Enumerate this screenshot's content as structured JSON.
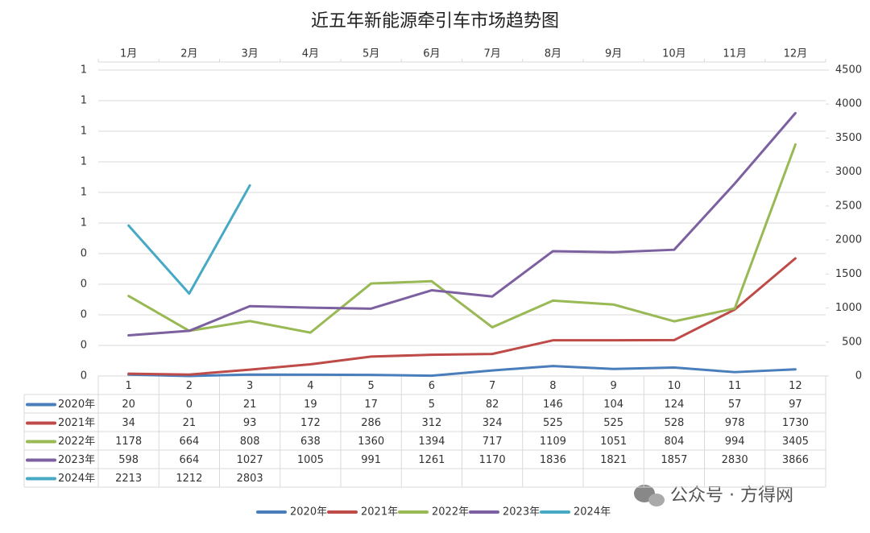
{
  "chart_data": {
    "type": "line",
    "title": "近五年新能源牵引车市场趋势图",
    "x2_categories": [
      "1月",
      "2月",
      "3月",
      "4月",
      "5月",
      "6月",
      "7月",
      "8月",
      "9月",
      "10月",
      "11月",
      "12月"
    ],
    "categories": [
      "1",
      "2",
      "3",
      "4",
      "5",
      "6",
      "7",
      "8",
      "9",
      "10",
      "11",
      "12"
    ],
    "ylim": [
      0,
      1
    ],
    "yticks": [
      0,
      {
        "value": 0.1,
        "label": "0"
      },
      {
        "value": 0.2,
        "label": "0"
      },
      {
        "value": 0.3,
        "label": "0"
      },
      {
        "value": 0.4,
        "label": "0"
      },
      {
        "value": 0.5,
        "label": "1"
      },
      {
        "value": 0.6,
        "label": "1"
      },
      {
        "value": 0.7,
        "label": "1"
      },
      {
        "value": 0.8,
        "label": "1"
      },
      {
        "value": 0.9,
        "label": "1"
      },
      1
    ],
    "y2lim": [
      0,
      4500
    ],
    "y2ticks": [
      0,
      500,
      1000,
      1500,
      2000,
      2500,
      3000,
      3500,
      4000,
      4500
    ],
    "grid": true,
    "legend": "bottom",
    "series": [
      {
        "name": "2020年",
        "color": "#4a7ebb",
        "axis": "y2",
        "values": [
          20,
          0,
          21,
          19,
          17,
          5,
          82,
          146,
          104,
          124,
          57,
          97
        ]
      },
      {
        "name": "2021年",
        "color": "#be4b48",
        "axis": "y2",
        "values": [
          34,
          21,
          93,
          172,
          286,
          312,
          324,
          525,
          525,
          528,
          978,
          1730
        ]
      },
      {
        "name": "2022年",
        "color": "#98b954",
        "axis": "y2",
        "values": [
          1178,
          664,
          808,
          638,
          1360,
          1394,
          717,
          1109,
          1051,
          804,
          994,
          3405
        ]
      },
      {
        "name": "2023年",
        "color": "#7d60a0",
        "axis": "y2",
        "values": [
          598,
          664,
          1027,
          1005,
          991,
          1261,
          1170,
          1836,
          1821,
          1857,
          2830,
          3866
        ]
      },
      {
        "name": "2024年",
        "color": "#46aac5",
        "axis": "y2",
        "values": [
          2213,
          1212,
          2803,
          null,
          null,
          null,
          null,
          null,
          null,
          null,
          null,
          null
        ]
      }
    ],
    "watermark": "公众号 · 方得网"
  }
}
